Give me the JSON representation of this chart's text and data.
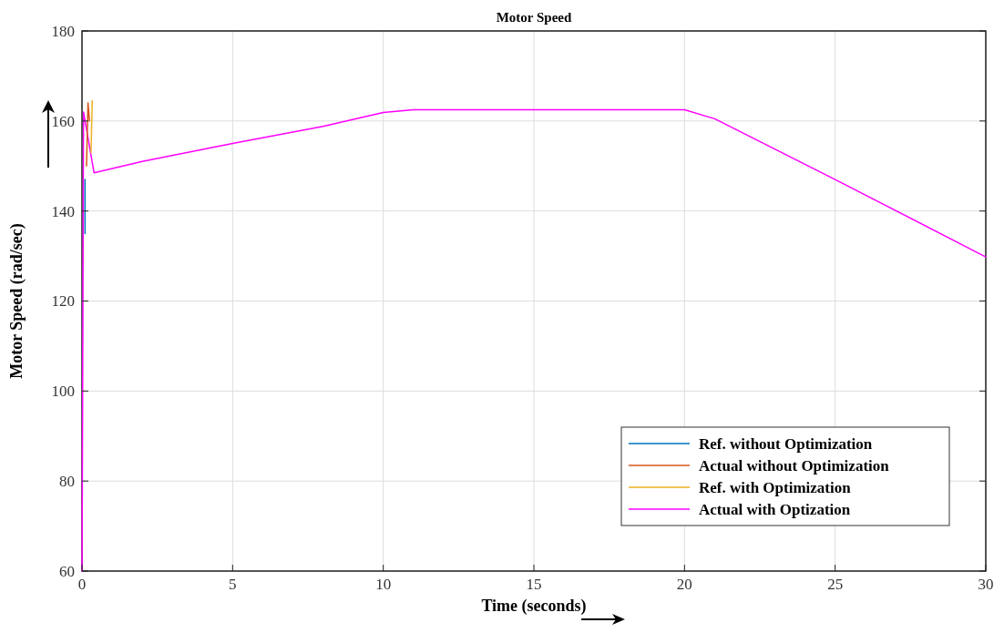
{
  "chart_data": {
    "type": "line",
    "title": "Motor Speed",
    "xlabel": "Time (seconds)",
    "ylabel": "Motor Speed (rad/sec)",
    "xlim": [
      0,
      30
    ],
    "xticks": [
      0,
      5,
      10,
      15,
      20,
      25,
      30
    ],
    "ylim": [
      60,
      180
    ],
    "yticks": [
      60,
      80,
      100,
      120,
      140,
      160,
      180
    ],
    "grid": true,
    "legend": "bottom right",
    "line_style": "solid",
    "marker": "none",
    "series": [
      {
        "name": "Ref. without Optimization",
        "color": "#0072bd",
        "x": [
          0.1,
          0.1
        ],
        "values": [
          135,
          147
        ]
      },
      {
        "name": "Actual without Optimization",
        "color": "#d95319",
        "x": [
          0.15,
          0.2,
          0.25
        ],
        "values": [
          150,
          164,
          160
        ]
      },
      {
        "name": "Ref. with Optimization",
        "color": "#edb120",
        "x": [
          0.3,
          0.34
        ],
        "values": [
          153,
          164.5
        ]
      },
      {
        "name": "Actual with Optization",
        "color": "#ff00ff",
        "x": [
          0,
          0.02,
          0.05,
          0.4,
          2,
          5,
          8,
          10,
          11,
          15,
          20,
          21,
          25,
          30
        ],
        "values": [
          60,
          95,
          162,
          148.5,
          151,
          155,
          158.8,
          161.9,
          162.5,
          162.5,
          162.5,
          160.5,
          147,
          129.8
        ]
      }
    ]
  }
}
